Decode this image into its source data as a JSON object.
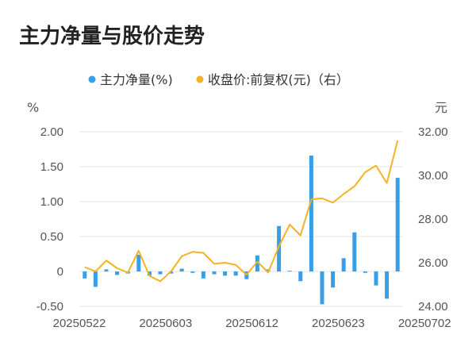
{
  "title": "主力净量与股价走势",
  "legend": {
    "bar_label": "主力净量(%)",
    "line_label": "收盘价:前复权(元)（右）"
  },
  "colors": {
    "bar": "#3A9EE6",
    "line": "#F5B324",
    "grid": "#E6E6E6",
    "text": "#555555"
  },
  "chart_data": {
    "type": "bar+line",
    "title": "主力净量与股价走势",
    "left_axis": {
      "unit": "%",
      "ylim": [
        -0.5,
        2.0
      ],
      "ticks": [
        "-0.50",
        "0",
        "0.50",
        "1.00",
        "1.50",
        "2.00"
      ],
      "tick_values": [
        -0.5,
        0,
        0.5,
        1.0,
        1.5,
        2.0
      ]
    },
    "right_axis": {
      "unit": "元",
      "ylim": [
        24.0,
        32.0
      ],
      "ticks": [
        "24.00",
        "26.00",
        "28.00",
        "30.00",
        "32.00"
      ],
      "tick_values": [
        24,
        26,
        28,
        30,
        32
      ]
    },
    "x_tick_labels": [
      "20250522",
      "20250603",
      "20250612",
      "20250623",
      "20250702"
    ],
    "x_tick_indices": [
      0,
      8,
      16,
      24,
      32
    ],
    "grid": true,
    "legend_position": "top-center",
    "series": [
      {
        "name": "主力净量(%)",
        "type": "bar",
        "axis": "left",
        "values": [
          -0.1,
          -0.22,
          0.03,
          -0.05,
          -0.03,
          0.24,
          -0.06,
          -0.04,
          -0.03,
          0.04,
          -0.02,
          -0.1,
          -0.04,
          -0.06,
          -0.06,
          -0.11,
          0.23,
          0.03,
          0.65,
          0.01,
          -0.14,
          1.66,
          -0.47,
          -0.23,
          0.19,
          0.56,
          -0.02,
          -0.2,
          -0.39,
          1.34
        ]
      },
      {
        "name": "收盘价:前复权(元)（右）",
        "type": "line",
        "axis": "right",
        "values": [
          25.8,
          25.6,
          26.1,
          25.75,
          25.55,
          26.55,
          25.4,
          25.15,
          25.6,
          26.3,
          26.5,
          26.45,
          25.95,
          26.0,
          25.9,
          25.45,
          26.05,
          25.55,
          26.75,
          27.75,
          27.25,
          28.9,
          28.95,
          28.75,
          29.15,
          29.5,
          30.15,
          30.45,
          29.65,
          31.6
        ]
      }
    ]
  }
}
